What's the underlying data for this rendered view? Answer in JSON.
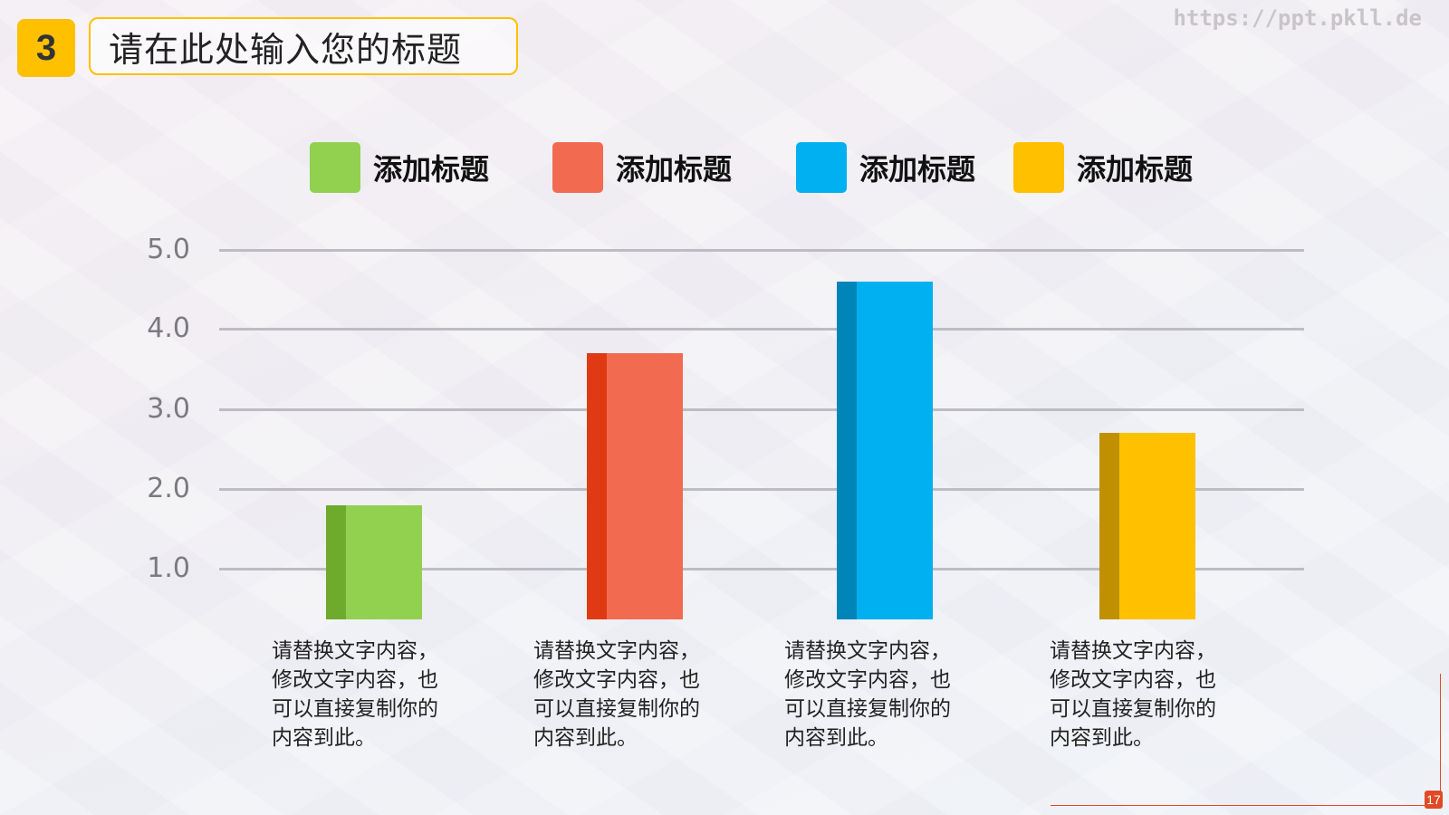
{
  "slide": {
    "section_number": "3",
    "title": "请在此处输入您的标题",
    "watermark": "https://ppt.pkll.de",
    "page_number": "17",
    "accent_color": "#ffc000",
    "frame_color": "#e04a26"
  },
  "legend": [
    {
      "label": "添加标题",
      "color": "#92d050"
    },
    {
      "label": "添加标题",
      "color": "#f26b51"
    },
    {
      "label": "添加标题",
      "color": "#00b0f0"
    },
    {
      "label": "添加标题",
      "color": "#ffc000"
    }
  ],
  "descriptions": [
    "请替换文字内容，\n修改文字内容，也\n可以直接复制你的\n内容到此。",
    "请替换文字内容，\n修改文字内容，也\n可以直接复制你的\n内容到此。",
    "请替换文字内容，\n修改文字内容，也\n可以直接复制你的\n内容到此。",
    "请替换文字内容，\n修改文字内容，也\n可以直接复制你的\n内容到此。"
  ],
  "chart_data": {
    "type": "bar",
    "title": "",
    "categories": [
      "添加标题",
      "添加标题",
      "添加标题",
      "添加标题"
    ],
    "values": [
      1.8,
      3.7,
      4.6,
      2.7
    ],
    "colors": [
      "#92d050",
      "#f26b51",
      "#00b0f0",
      "#ffc000"
    ],
    "side_colors": [
      "#6eaa2c",
      "#e03a14",
      "#0085b8",
      "#c09000"
    ],
    "y_ticks": [
      "1.0",
      "2.0",
      "3.0",
      "4.0",
      "5.0"
    ],
    "xlabel": "",
    "ylabel": "",
    "ylim": [
      0,
      5
    ],
    "grid": true,
    "legend_position": "top"
  }
}
